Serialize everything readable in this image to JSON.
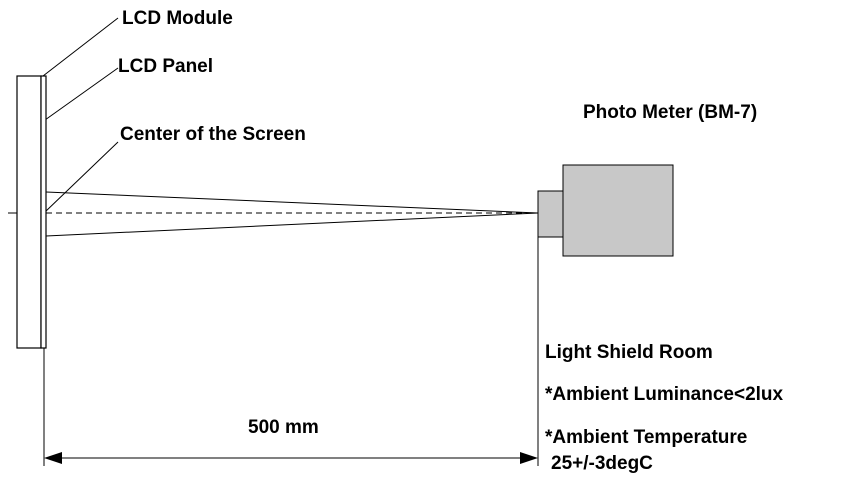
{
  "labels": {
    "lcd_module": "LCD Module",
    "lcd_panel": "LCD Panel",
    "screen_center": "Center of the Screen",
    "photo_meter": "Photo Meter (BM-7)",
    "room_title": "Light Shield Room",
    "ambient_luminance": "*Ambient Luminance<2lux",
    "ambient_temperature": "*Ambient Temperature",
    "temperature_value": "25+/-3degC",
    "distance": "500 mm"
  },
  "colors": {
    "line": "#000000",
    "fill": "#c8c8c8",
    "background": "#ffffff"
  }
}
